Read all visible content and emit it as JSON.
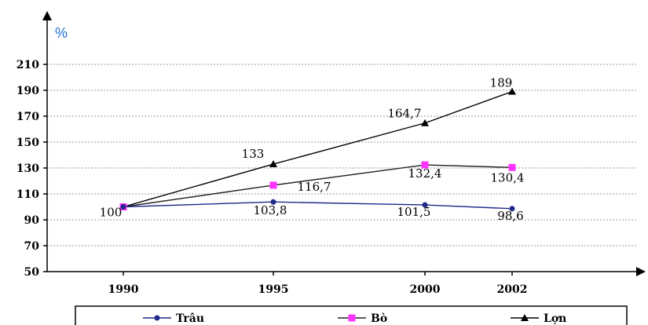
{
  "chart_data": {
    "type": "line",
    "title": "",
    "ylabel": "%",
    "xlabel": "",
    "categories": [
      "1990",
      "1995",
      "2000",
      "2002"
    ],
    "x": [
      1990,
      1995,
      2000,
      2002
    ],
    "y_ticks": [
      "50",
      "70",
      "90",
      "110",
      "130",
      "150",
      "170",
      "190",
      "210"
    ],
    "ylim": [
      50,
      210
    ],
    "grid": true,
    "legend_position": "bottom",
    "series": [
      {
        "name": "Trâu",
        "values": [
          100,
          103.8,
          101.5,
          98.6
        ],
        "labels": [
          "100",
          "103,8",
          "101,5",
          "98,6"
        ],
        "color": "#1f2a8a",
        "marker": "circle"
      },
      {
        "name": "Bò",
        "values": [
          100,
          116.7,
          132.4,
          130.4
        ],
        "labels": [
          "",
          "116,7",
          "132,4",
          "130,4"
        ],
        "color": "#ff33ff",
        "marker": "square"
      },
      {
        "name": "Lợn",
        "values": [
          100,
          133,
          164.7,
          189
        ],
        "labels": [
          "",
          "133",
          "164,7",
          "189"
        ],
        "color": "#000000",
        "marker": "triangle"
      }
    ]
  }
}
